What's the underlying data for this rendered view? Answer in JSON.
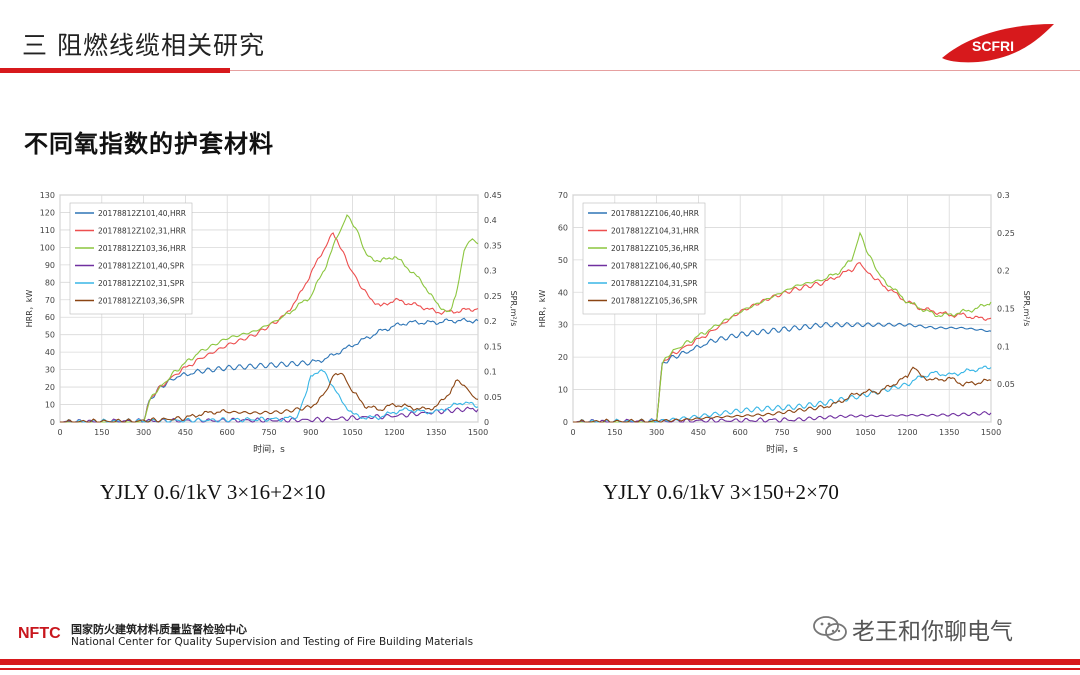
{
  "header": {
    "title": "三 阻燃线缆相关研究"
  },
  "logo": {
    "text": "SCFRI",
    "color": "#d7191c"
  },
  "subtitle": "不同氧指数的护套材料",
  "captions": [
    "YJLY 0.6/1kV 3×16+2×10",
    "YJLY 0.6/1kV 3×150+2×70"
  ],
  "footer": {
    "logo": "NFTC",
    "cn": "国家防火建筑材料质量监督检验中心",
    "en": "National Center for Quality Supervision and Testing of Fire Building Materials"
  },
  "watermark": "老王和你聊电气",
  "chart_data": [
    {
      "type": "line",
      "xlabel": "时间，s",
      "ylabel": "HRR，kW",
      "y2label": "SPR,m²/s",
      "xlim": [
        0,
        1500
      ],
      "ylim": [
        0,
        130
      ],
      "y2lim": [
        0,
        0.45
      ],
      "xticks": [
        "0",
        "150",
        "300",
        "450",
        "600",
        "750",
        "900",
        "1050",
        "1200",
        "1350",
        "1500"
      ],
      "yticks": [
        "0",
        "10",
        "20",
        "30",
        "40",
        "50",
        "60",
        "70",
        "80",
        "90",
        "100",
        "110",
        "120",
        "130"
      ],
      "y2ticks": [
        "0",
        "0.05",
        "0.1",
        "0.15",
        "0.2",
        "0.25",
        "0.3",
        "0.35",
        "0.4",
        "0.45"
      ],
      "legend_position": "top-left",
      "series": [
        {
          "name": "20178812Z101,40,HRR",
          "axis": "left",
          "color": "#2e75b6",
          "x": [
            0,
            300,
            320,
            360,
            420,
            500,
            600,
            700,
            800,
            900,
            950,
            1000,
            1050,
            1100,
            1150,
            1200,
            1250,
            1300,
            1350,
            1400,
            1450,
            1500
          ],
          "y": [
            0,
            0,
            12,
            20,
            26,
            29,
            31,
            32,
            33,
            34,
            36,
            40,
            44,
            48,
            52,
            55,
            57,
            57,
            57,
            58,
            58,
            58
          ]
        },
        {
          "name": "20178812Z102,31,HRR",
          "axis": "left",
          "color": "#ed4f4f",
          "x": [
            0,
            300,
            320,
            360,
            420,
            500,
            600,
            700,
            800,
            850,
            900,
            950,
            980,
            1000,
            1040,
            1100,
            1150,
            1200,
            1250,
            1300,
            1350,
            1400,
            1450,
            1500
          ],
          "y": [
            0,
            0,
            12,
            20,
            28,
            36,
            44,
            50,
            60,
            70,
            85,
            100,
            108,
            103,
            88,
            73,
            66,
            70,
            68,
            66,
            63,
            63,
            64,
            65
          ]
        },
        {
          "name": "20178812Z103,36,HRR",
          "axis": "left",
          "color": "#8cc63f",
          "x": [
            0,
            300,
            320,
            360,
            420,
            500,
            600,
            700,
            800,
            850,
            900,
            950,
            1000,
            1030,
            1060,
            1100,
            1150,
            1200,
            1250,
            1300,
            1350,
            1400,
            1420,
            1450,
            1480,
            1500
          ],
          "y": [
            0,
            0,
            12,
            20,
            30,
            40,
            48,
            52,
            60,
            66,
            72,
            88,
            108,
            118,
            112,
            95,
            92,
            95,
            88,
            80,
            68,
            62,
            72,
            98,
            106,
            102
          ]
        },
        {
          "name": "20178812Z101,40,SPR",
          "axis": "right",
          "color": "#7030a0",
          "x": [
            0,
            300,
            600,
            900,
            1050,
            1200,
            1350,
            1450,
            1500
          ],
          "y": [
            0,
            0.002,
            0.003,
            0.004,
            0.008,
            0.012,
            0.02,
            0.025,
            0.025
          ]
        },
        {
          "name": "20178812Z102,31,SPR",
          "axis": "right",
          "color": "#38b6e6",
          "x": [
            0,
            300,
            600,
            800,
            850,
            880,
            900,
            950,
            1000,
            1050,
            1100,
            1150,
            1200,
            1250,
            1300,
            1350,
            1400,
            1450,
            1500
          ],
          "y": [
            0,
            0.002,
            0.004,
            0.006,
            0.01,
            0.05,
            0.095,
            0.1,
            0.05,
            0.015,
            0.008,
            0.01,
            0.02,
            0.025,
            0.02,
            0.02,
            0.03,
            0.04,
            0.03
          ]
        },
        {
          "name": "20178812Z103,36,SPR",
          "axis": "right",
          "color": "#8b4513",
          "x": [
            0,
            300,
            450,
            500,
            550,
            600,
            700,
            800,
            900,
            950,
            990,
            1020,
            1050,
            1100,
            1150,
            1200,
            1250,
            1300,
            1350,
            1400,
            1420,
            1450,
            1480,
            1500
          ],
          "y": [
            0,
            0.002,
            0.008,
            0.015,
            0.02,
            0.02,
            0.018,
            0.02,
            0.03,
            0.055,
            0.1,
            0.09,
            0.06,
            0.03,
            0.025,
            0.035,
            0.03,
            0.025,
            0.03,
            0.06,
            0.08,
            0.075,
            0.05,
            0.045
          ]
        }
      ]
    },
    {
      "type": "line",
      "xlabel": "时间，s",
      "ylabel": "HRR，kW",
      "y2label": "SPR,m²/s",
      "xlim": [
        0,
        1500
      ],
      "ylim": [
        0,
        70
      ],
      "y2lim": [
        0,
        0.3
      ],
      "xticks": [
        "0",
        "150",
        "300",
        "450",
        "600",
        "750",
        "900",
        "1050",
        "1200",
        "1350",
        "1500"
      ],
      "yticks": [
        "0",
        "10",
        "20",
        "30",
        "40",
        "50",
        "60",
        "70"
      ],
      "y2ticks": [
        "0",
        "0.05",
        "0.1",
        "0.15",
        "0.2",
        "0.25",
        "0.3"
      ],
      "legend_position": "top-left",
      "series": [
        {
          "name": "20178812Z106,40,HRR",
          "axis": "left",
          "color": "#2e75b6",
          "x": [
            0,
            300,
            320,
            360,
            420,
            500,
            600,
            700,
            800,
            900,
            1000,
            1100,
            1200,
            1300,
            1400,
            1500
          ],
          "y": [
            0,
            0,
            18,
            20,
            22,
            25,
            27,
            28,
            29,
            30,
            30,
            30,
            30,
            29,
            29,
            28
          ]
        },
        {
          "name": "20178812Z104,31,HRR",
          "axis": "left",
          "color": "#ed4f4f",
          "x": [
            0,
            300,
            320,
            360,
            420,
            500,
            600,
            700,
            800,
            900,
            950,
            1000,
            1030,
            1060,
            1100,
            1150,
            1200,
            1250,
            1300,
            1350,
            1400,
            1450,
            1500
          ],
          "y": [
            0,
            0,
            18,
            21,
            24,
            28,
            34,
            38,
            41,
            43,
            45,
            47,
            49,
            46,
            43,
            40,
            37,
            35,
            34,
            33,
            33,
            32,
            32
          ]
        },
        {
          "name": "20178812Z105,36,HRR",
          "axis": "left",
          "color": "#8cc63f",
          "x": [
            0,
            300,
            320,
            360,
            420,
            500,
            600,
            700,
            800,
            900,
            950,
            1000,
            1030,
            1060,
            1100,
            1150,
            1200,
            1250,
            1300,
            1350,
            1400,
            1450,
            1500
          ],
          "y": [
            0,
            0,
            18,
            22,
            25,
            29,
            34,
            38,
            42,
            44,
            46,
            50,
            58,
            52,
            45,
            41,
            37,
            35,
            33,
            33,
            34,
            35,
            37
          ]
        },
        {
          "name": "20178812Z106,40,SPR",
          "axis": "right",
          "color": "#7030a0",
          "x": [
            0,
            300,
            600,
            800,
            900,
            1000,
            1100,
            1200,
            1300,
            1400,
            1500
          ],
          "y": [
            0,
            0.001,
            0.002,
            0.003,
            0.006,
            0.008,
            0.008,
            0.009,
            0.009,
            0.01,
            0.012
          ]
        },
        {
          "name": "20178812Z104,31,SPR",
          "axis": "right",
          "color": "#38b6e6",
          "x": [
            0,
            300,
            400,
            500,
            600,
            700,
            800,
            900,
            1000,
            1100,
            1200,
            1250,
            1300,
            1350,
            1400,
            1450,
            1500
          ],
          "y": [
            0,
            0.001,
            0.005,
            0.01,
            0.015,
            0.018,
            0.02,
            0.025,
            0.032,
            0.04,
            0.05,
            0.06,
            0.065,
            0.062,
            0.066,
            0.07,
            0.072
          ]
        },
        {
          "name": "20178812Z105,36,SPR",
          "axis": "right",
          "color": "#8b4513",
          "x": [
            0,
            300,
            400,
            500,
            600,
            700,
            800,
            900,
            950,
            1000,
            1050,
            1100,
            1150,
            1200,
            1220,
            1250,
            1300,
            1350,
            1400,
            1450,
            1500
          ],
          "y": [
            0,
            0.001,
            0.003,
            0.006,
            0.008,
            0.01,
            0.015,
            0.02,
            0.025,
            0.035,
            0.04,
            0.04,
            0.05,
            0.06,
            0.075,
            0.06,
            0.055,
            0.058,
            0.05,
            0.052,
            0.055
          ]
        }
      ]
    }
  ]
}
